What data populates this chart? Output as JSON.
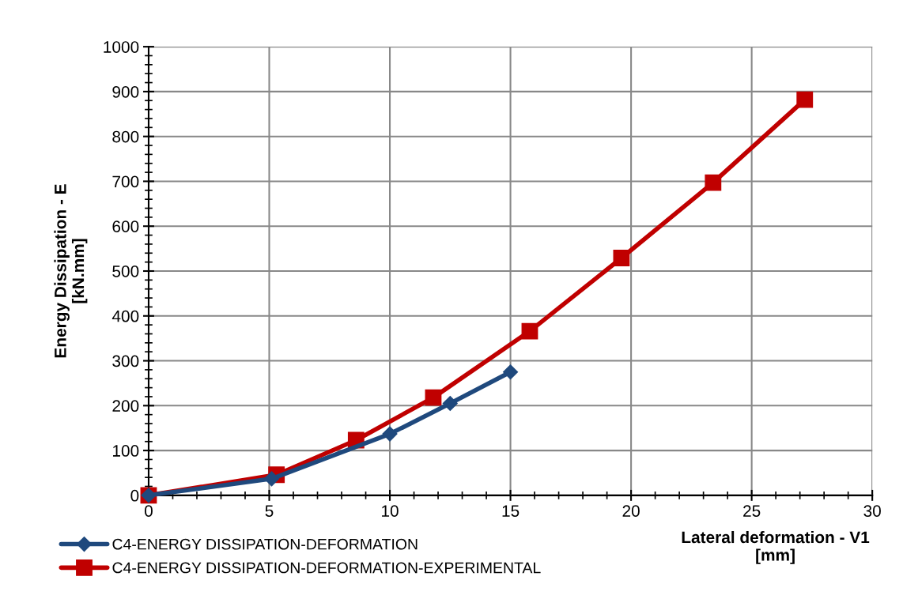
{
  "chart_data": {
    "type": "line",
    "xlabel": "Lateral deformation - V1\n[mm]",
    "ylabel": "Energy Dissipation - E\n[kN.mm]",
    "xlim": [
      0,
      30
    ],
    "xticks": [
      0,
      5,
      10,
      15,
      20,
      25,
      30
    ],
    "ylim": [
      0,
      1000
    ],
    "yticks": [
      0,
      100,
      200,
      300,
      400,
      500,
      600,
      700,
      800,
      900,
      1000
    ],
    "grid": true,
    "legend": "bottom left",
    "series": [
      {
        "name": "C4-ENERGY DISSIPATION-DEFORMATION",
        "color": "#1f497d",
        "marker": "diamond",
        "x": [
          0,
          5.1,
          10,
          12.5,
          15
        ],
        "values": [
          0,
          37,
          137,
          205,
          275
        ]
      },
      {
        "name": "C4-ENERGY DISSIPATION-DEFORMATION-EXPERIMENTAL",
        "color": "#c00000",
        "marker": "square",
        "x": [
          0,
          5.3,
          8.6,
          11.8,
          15.8,
          19.6,
          23.4,
          27.2
        ],
        "values": [
          0,
          46,
          123,
          218,
          366,
          529,
          697,
          882
        ]
      }
    ]
  }
}
